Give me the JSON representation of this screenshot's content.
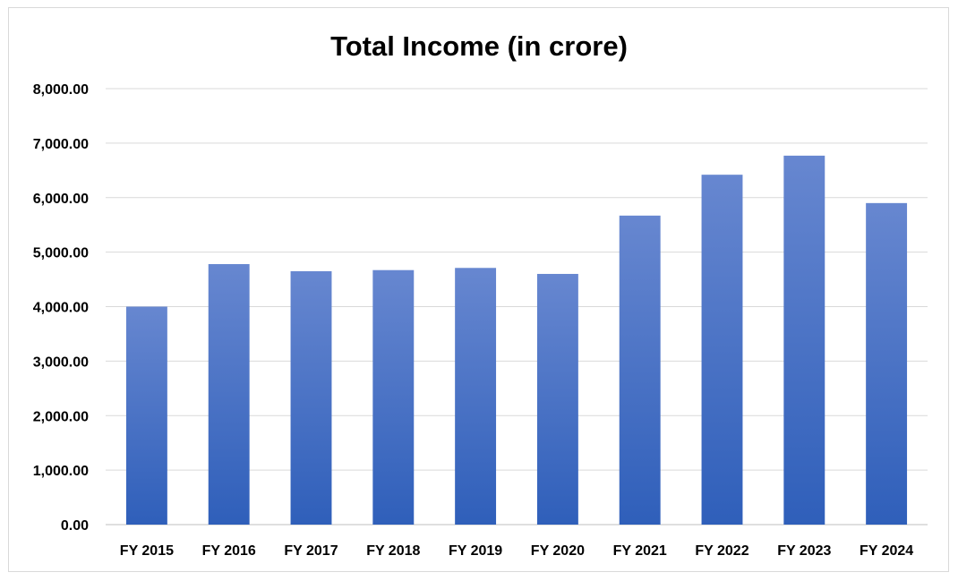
{
  "chart_data": {
    "type": "bar",
    "title": "Total Income (in crore)",
    "xlabel": "",
    "ylabel": "",
    "categories": [
      "FY 2015",
      "FY 2016",
      "FY 2017",
      "FY 2018",
      "FY 2019",
      "FY 2020",
      "FY 2021",
      "FY 2022",
      "FY 2023",
      "FY 2024"
    ],
    "values": [
      4000,
      4780,
      4650,
      4670,
      4710,
      4600,
      5670,
      6420,
      6770,
      5900
    ],
    "ylim": [
      0,
      8000
    ],
    "yticks": [
      "0.00",
      "1,000.00",
      "2,000.00",
      "3,000.00",
      "4,000.00",
      "5,000.00",
      "6,000.00",
      "7,000.00",
      "8,000.00"
    ],
    "grid": true,
    "legend": "none",
    "bar_color_top": "#6787d0",
    "bar_color_bottom": "#2f5fba"
  }
}
